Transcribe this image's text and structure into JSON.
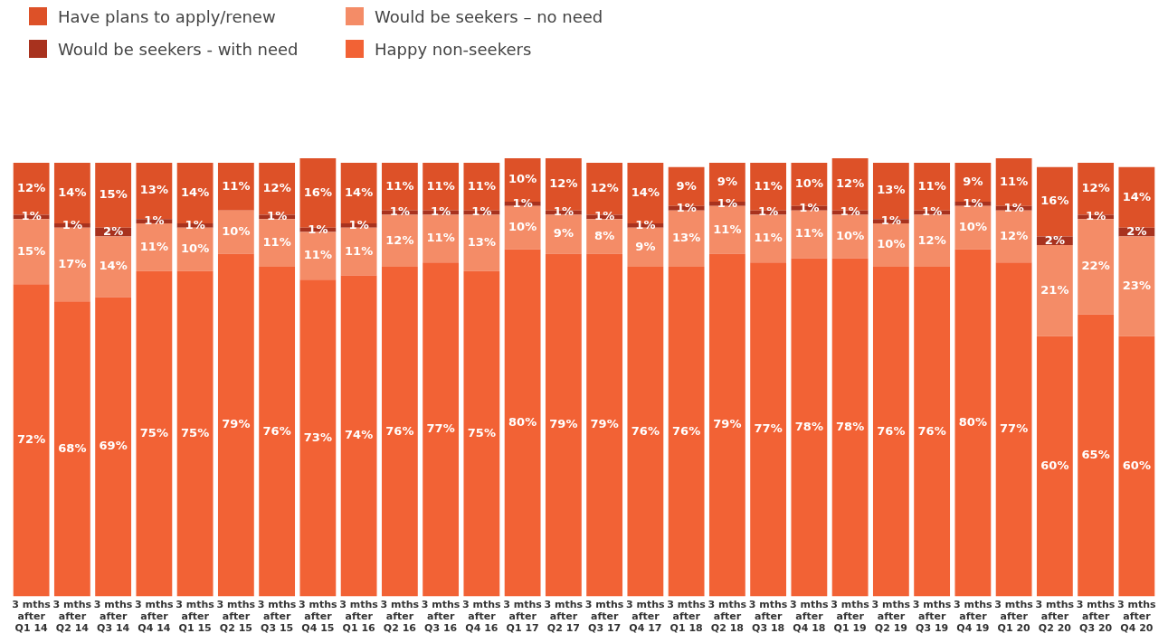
{
  "chart_data": {
    "type": "bar",
    "stacked": true,
    "legend": "top left",
    "grid": false,
    "tick_labels": "x",
    "categories": [
      "3 mths after Q1 14",
      "3 mths after Q2 14",
      "3 mths after Q3 14",
      "3 mths after Q4 14",
      "3 mths after Q1 15",
      "3 mths after Q2 15",
      "3 mths after Q3 15",
      "3 mths after Q4 15",
      "3 mths after Q1 16",
      "3 mths after Q2 16",
      "3 mths after Q3 16",
      "3 mths after Q4 16",
      "3 mths after Q1 17",
      "3 mths after Q2 17",
      "3 mths after Q3 17",
      "3 mths after Q4 17",
      "3 mths after Q1 18",
      "3 mths after Q2 18",
      "3 mths after Q3 18",
      "3 mths after Q4 18",
      "3 mths after Q1 19",
      "3 mths after Q2 19",
      "3 mths after Q3 19",
      "3 mths after Q4 19",
      "3 mths after Q1 20",
      "3 mths after Q2 20",
      "3 mths after Q3 20",
      "3 mths after Q4 20"
    ],
    "series": [
      {
        "name": "Happy non-seekers",
        "color": "#f26235",
        "values": [
          72,
          68,
          69,
          75,
          75,
          79,
          76,
          73,
          74,
          76,
          77,
          75,
          80,
          79,
          79,
          76,
          76,
          79,
          77,
          78,
          78,
          76,
          76,
          80,
          77,
          60,
          65,
          60
        ],
        "value_labels": [
          "72%",
          "68%",
          "69%",
          "75%",
          "75%",
          "79%",
          "76%",
          "73%",
          "74%",
          "76%",
          "77%",
          "75%",
          "80%",
          "79%",
          "79%",
          "76%",
          "76%",
          "79%",
          "77%",
          "78%",
          "78%",
          "76%",
          "76%",
          "80%",
          "77%",
          "60%",
          "65%",
          "60%"
        ]
      },
      {
        "name": "Would be seekers – no need",
        "color": "#f48c67",
        "values": [
          15,
          17,
          14,
          11,
          10,
          10,
          11,
          11,
          11,
          12,
          11,
          13,
          10,
          9,
          8,
          9,
          13,
          11,
          11,
          11,
          10,
          10,
          12,
          10,
          12,
          21,
          22,
          23
        ],
        "value_labels": [
          "15%",
          "17%",
          "14%",
          "11%",
          "10%",
          "10%",
          "11%",
          "11%",
          "11%",
          "12%",
          "11%",
          "13%",
          "10%",
          "9%",
          "8%",
          "9%",
          "13%",
          "11%",
          "11%",
          "11%",
          "10%",
          "10%",
          "12%",
          "10%",
          "12%",
          "21%",
          "22%",
          "23%"
        ]
      },
      {
        "name": "Would be seekers - with need",
        "color": "#a8321e",
        "values": [
          1,
          1,
          2,
          1,
          1,
          null,
          1,
          1,
          1,
          1,
          1,
          1,
          1,
          1,
          1,
          1,
          1,
          1,
          1,
          1,
          1,
          1,
          1,
          1,
          1,
          2,
          1,
          2
        ],
        "value_labels": [
          "1%",
          "1%",
          "2%",
          "1%",
          "1%",
          null,
          "1%",
          "1%",
          "1%",
          "1%",
          "1%",
          "1%",
          "1%",
          "1%",
          "1%",
          "1%",
          "1%",
          "1%",
          "1%",
          "1%",
          "1%",
          "1%",
          "1%",
          "1%",
          "1%",
          "2%",
          "1%",
          "2%"
        ]
      },
      {
        "name": "Have plans to apply/renew",
        "color": "#dd5128",
        "values": [
          12,
          14,
          15,
          13,
          14,
          11,
          12,
          16,
          14,
          11,
          11,
          11,
          10,
          12,
          12,
          14,
          9,
          9,
          11,
          10,
          12,
          13,
          11,
          9,
          11,
          16,
          12,
          14
        ],
        "value_labels": [
          "12%",
          "14%",
          "15%",
          "13%",
          "14%",
          "11%",
          "12%",
          "16%",
          "14%",
          "11%",
          "11%",
          "11%",
          "10%",
          "12%",
          "12%",
          "14%",
          "9%",
          "9%",
          "11%",
          "10%",
          "12%",
          "13%",
          "11%",
          "9%",
          "11%",
          "16%",
          "12%",
          "14%"
        ]
      }
    ]
  }
}
